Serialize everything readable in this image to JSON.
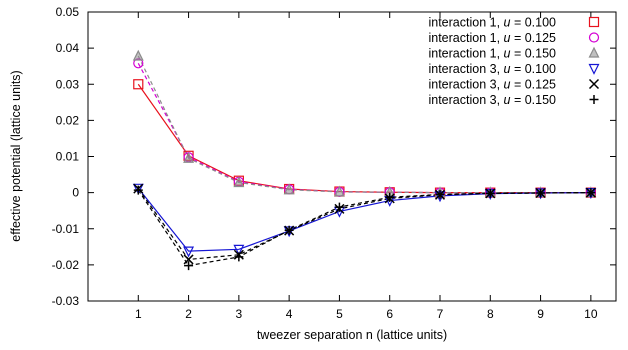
{
  "chart_data": {
    "type": "line",
    "xlabel": "tweezer separation n (lattice units)",
    "ylabel": "effective potential (lattice units)",
    "xlim": [
      0,
      10.5
    ],
    "ylim": [
      -0.03,
      0.05
    ],
    "xticks": [
      1,
      2,
      3,
      4,
      5,
      6,
      7,
      8,
      9,
      10
    ],
    "yticks": [
      -0.03,
      -0.02,
      -0.01,
      0,
      0.01,
      0.02,
      0.03,
      0.04,
      0.05
    ],
    "ytick_labels": [
      "-0.03",
      "-0.02",
      "-0.01",
      "0",
      "0.01",
      "0.02",
      "0.03",
      "0.04",
      "0.05"
    ],
    "grid": false,
    "legend_position": "top-right",
    "x": [
      1,
      2,
      3,
      4,
      5,
      6,
      7,
      8,
      9,
      10
    ],
    "series": [
      {
        "legend_prefix": "interaction 1, ",
        "legend_var": "u",
        "legend_suffix": " = 0.100",
        "color": "#e8111d",
        "marker": "square",
        "line": "solid",
        "values": [
          0.03,
          0.0102,
          0.0033,
          0.001,
          0.0003,
          0.0001,
          0.0,
          0.0,
          0.0,
          0.0
        ]
      },
      {
        "legend_prefix": "interaction 1, ",
        "legend_var": "u",
        "legend_suffix": " = 0.125",
        "color": "#d400d4",
        "marker": "circle",
        "line": "dashed",
        "values": [
          0.0358,
          0.0098,
          0.003,
          0.0009,
          0.0002,
          0.0001,
          0.0,
          0.0,
          0.0,
          0.0
        ]
      },
      {
        "legend_prefix": "interaction 1, ",
        "legend_var": "u",
        "legend_suffix": " = 0.150",
        "color": "#8c8c8c",
        "marker": "triangle-up",
        "line": "dashed",
        "values": [
          0.0378,
          0.0095,
          0.0028,
          0.0008,
          0.0002,
          0.0001,
          0.0,
          0.0,
          0.0,
          0.0
        ]
      },
      {
        "legend_prefix": "interaction 3, ",
        "legend_var": "u",
        "legend_suffix": " = 0.100",
        "color": "#1616d4",
        "marker": "triangle-down",
        "line": "solid",
        "values": [
          0.0012,
          -0.0162,
          -0.0157,
          -0.0106,
          -0.0052,
          -0.0022,
          -0.0009,
          -0.0003,
          -0.0001,
          0.0
        ]
      },
      {
        "legend_prefix": "interaction 3, ",
        "legend_var": "u",
        "legend_suffix": " = 0.125",
        "color": "#000000",
        "marker": "x",
        "line": "dashed",
        "values": [
          0.0011,
          -0.0185,
          -0.0172,
          -0.0105,
          -0.0045,
          -0.0016,
          -0.0006,
          -0.0002,
          -0.0001,
          0.0
        ]
      },
      {
        "legend_prefix": "interaction 3, ",
        "legend_var": "u",
        "legend_suffix": " = 0.150",
        "color": "#000000",
        "marker": "plus",
        "line": "dashed",
        "values": [
          0.0007,
          -0.0202,
          -0.0178,
          -0.0104,
          -0.004,
          -0.0013,
          -0.0005,
          -0.0002,
          -0.0001,
          0.0
        ]
      }
    ]
  }
}
